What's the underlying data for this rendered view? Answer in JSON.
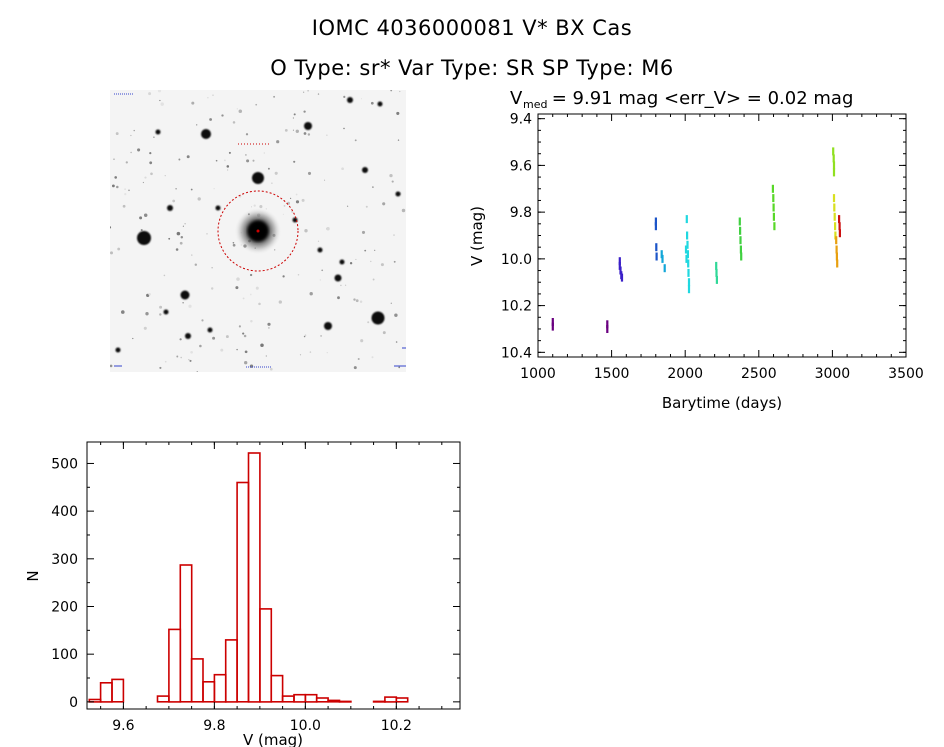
{
  "header": {
    "title_line1": "IOMC 4036000081    V* BX Cas",
    "title_line2": "O Type: sr*  Var Type: SR  SP Type: M6"
  },
  "stamp_image": {
    "marker_color": "#cc0000"
  },
  "chart_data": [
    {
      "type": "scatter",
      "title_main": "V",
      "title_sub": "med",
      "title_rest": " = 9.91 mag <err_V> = 0.02 mag",
      "xlabel": "Barytime (days)",
      "ylabel": "V (mag)",
      "xlim": [
        1000,
        3500
      ],
      "ylim": [
        10.42,
        9.38
      ],
      "y_inverted": true,
      "xticks": [
        1000,
        1500,
        2000,
        2500,
        3000,
        3500
      ],
      "yticks": [
        9.4,
        9.6,
        9.8,
        10.0,
        10.2,
        10.4
      ],
      "ytick_labels": [
        "9.4",
        "9.6",
        "9.8",
        "10.0",
        "10.2",
        "10.4"
      ],
      "series": [
        {
          "color": "#6a0080",
          "points": [
            [
              1100,
              10.27
            ],
            [
              1100,
              10.29
            ],
            [
              1470,
              10.28
            ],
            [
              1470,
              10.3
            ]
          ]
        },
        {
          "color": "#3a1fc8",
          "points": [
            [
              1555,
              10.01
            ],
            [
              1555,
              10.03
            ],
            [
              1560,
              10.05
            ],
            [
              1565,
              10.07
            ],
            [
              1570,
              10.08
            ]
          ]
        },
        {
          "color": "#1c55c8",
          "points": [
            [
              1800,
              9.84
            ],
            [
              1800,
              9.86
            ],
            [
              1803,
              9.95
            ],
            [
              1805,
              9.99
            ]
          ]
        },
        {
          "color": "#12a6d8",
          "points": [
            [
              1840,
              9.98
            ],
            [
              1845,
              10.0
            ],
            [
              1860,
              10.04
            ]
          ]
        },
        {
          "color": "#20d8e0",
          "points": [
            [
              2010,
              9.83
            ],
            [
              2012,
              9.9
            ],
            [
              2015,
              9.94
            ],
            [
              2018,
              9.98
            ],
            [
              2020,
              10.02
            ],
            [
              2022,
              10.06
            ],
            [
              2025,
              10.1
            ],
            [
              2025,
              10.13
            ],
            [
              2005,
              9.96
            ],
            [
              2008,
              10.0
            ]
          ]
        },
        {
          "color": "#30d898",
          "points": [
            [
              2210,
              10.03
            ],
            [
              2212,
              10.06
            ],
            [
              2215,
              10.09
            ]
          ]
        },
        {
          "color": "#40d040",
          "points": [
            [
              2370,
              9.84
            ],
            [
              2372,
              9.88
            ],
            [
              2375,
              9.92
            ],
            [
              2378,
              9.96
            ],
            [
              2380,
              9.99
            ]
          ]
        },
        {
          "color": "#58d828",
          "points": [
            [
              2595,
              9.7
            ],
            [
              2598,
              9.74
            ],
            [
              2600,
              9.78
            ],
            [
              2602,
              9.82
            ],
            [
              2605,
              9.86
            ]
          ]
        },
        {
          "color": "#90e020",
          "points": [
            [
              3005,
              9.54
            ],
            [
              3008,
              9.57
            ],
            [
              3010,
              9.6
            ],
            [
              3010,
              9.63
            ]
          ]
        },
        {
          "color": "#d8e020",
          "points": [
            [
              3010,
              9.74
            ],
            [
              3012,
              9.78
            ],
            [
              3015,
              9.82
            ],
            [
              3018,
              9.86
            ],
            [
              3020,
              9.9
            ]
          ]
        },
        {
          "color": "#e8a010",
          "points": [
            [
              3025,
              9.92
            ],
            [
              3028,
              9.96
            ],
            [
              3030,
              9.99
            ],
            [
              3032,
              10.02
            ]
          ]
        },
        {
          "color": "#cc1010",
          "points": [
            [
              3045,
              9.83
            ],
            [
              3048,
              9.86
            ],
            [
              3050,
              9.89
            ]
          ]
        }
      ]
    },
    {
      "type": "bar",
      "xlabel": "V (mag)",
      "ylabel": "N",
      "xlim": [
        9.52,
        10.34
      ],
      "ylim": [
        -15,
        545
      ],
      "xticks": [
        9.6,
        9.8,
        10.0,
        10.2
      ],
      "xtick_labels": [
        "9.6",
        "9.8",
        "10.0",
        "10.2"
      ],
      "yticks": [
        0,
        100,
        200,
        300,
        400,
        500
      ],
      "ytick_labels": [
        "0",
        "100",
        "200",
        "300",
        "400",
        "500"
      ],
      "bin_width": 0.025,
      "bar_color": "#cc0000",
      "bins": [
        [
          9.5375,
          5
        ],
        [
          9.5625,
          40
        ],
        [
          9.5875,
          47
        ],
        [
          9.6125,
          0
        ],
        [
          9.6375,
          0
        ],
        [
          9.6625,
          0
        ],
        [
          9.6875,
          12
        ],
        [
          9.7125,
          152
        ],
        [
          9.7375,
          287
        ],
        [
          9.7625,
          90
        ],
        [
          9.7875,
          42
        ],
        [
          9.8125,
          57
        ],
        [
          9.8375,
          130
        ],
        [
          9.8625,
          460
        ],
        [
          9.8875,
          522
        ],
        [
          9.9125,
          195
        ],
        [
          9.9375,
          55
        ],
        [
          9.9625,
          12
        ],
        [
          9.9875,
          15
        ],
        [
          10.0125,
          15
        ],
        [
          10.0375,
          8
        ],
        [
          10.0625,
          3
        ],
        [
          10.0875,
          1
        ],
        [
          10.1125,
          0
        ],
        [
          10.1375,
          0
        ],
        [
          10.1625,
          1
        ],
        [
          10.1875,
          10
        ],
        [
          10.2125,
          8
        ]
      ]
    }
  ]
}
